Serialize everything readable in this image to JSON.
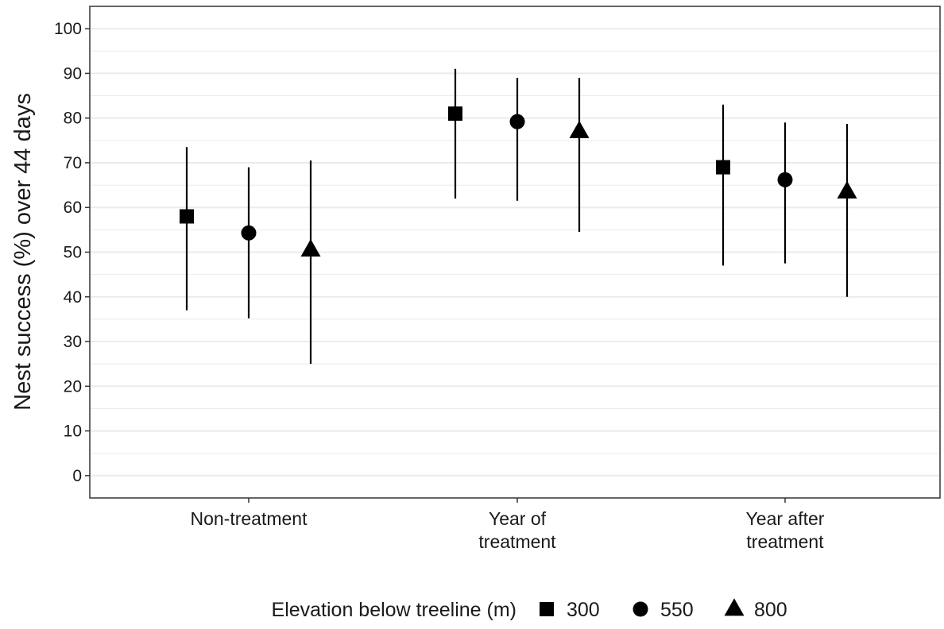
{
  "chart_data": {
    "type": "scatter",
    "subtype": "point-with-error-bars",
    "title": "",
    "xlabel": "",
    "ylabel": "Nest success (%) over 44 days",
    "ylim": [
      -5,
      105
    ],
    "yticks": [
      "0",
      "10",
      "20",
      "30",
      "40",
      "50",
      "60",
      "70",
      "80",
      "90",
      "100"
    ],
    "grid": true,
    "categories": [
      [
        "Non-treatment"
      ],
      [
        "Year of",
        "treatment"
      ],
      [
        "Year after",
        "treatment"
      ]
    ],
    "legend": {
      "title": "Elevation below treeline (m)",
      "position": "bottom"
    },
    "series": [
      {
        "name": "300",
        "marker": "square",
        "values": [
          58,
          81,
          69
        ],
        "lower": [
          37,
          62,
          47
        ],
        "upper": [
          73.5,
          91,
          83
        ]
      },
      {
        "name": "550",
        "marker": "circle",
        "values": [
          54.3,
          79.2,
          66.2
        ],
        "lower": [
          35.2,
          61.5,
          47.5
        ],
        "upper": [
          69,
          89,
          79
        ]
      },
      {
        "name": "800",
        "marker": "triangle",
        "values": [
          50.5,
          77,
          63.5
        ],
        "lower": [
          25,
          54.5,
          40
        ],
        "upper": [
          70.5,
          89,
          78.7
        ]
      }
    ],
    "colors": {
      "marker": "#000000",
      "grid": "#ebebeb",
      "axis": "#333333",
      "background": "#ffffff"
    }
  }
}
